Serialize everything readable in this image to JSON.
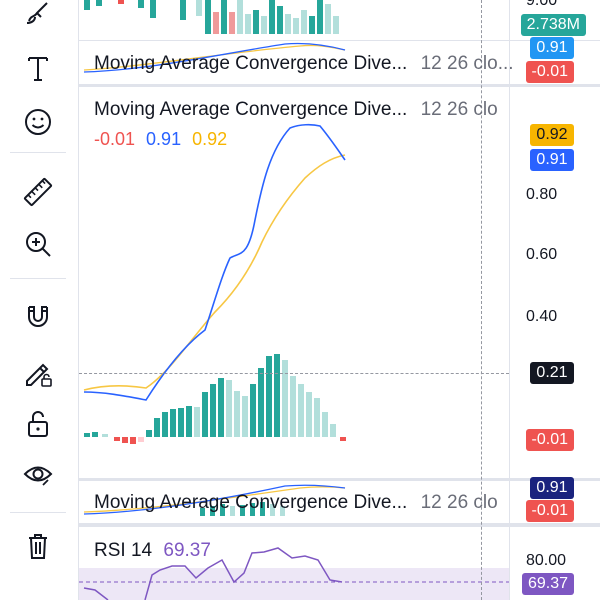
{
  "toolbar": {
    "tools": [
      {
        "name": "brush-icon"
      },
      {
        "name": "text-icon"
      },
      {
        "name": "emoji-icon"
      },
      {
        "name": "ruler-icon"
      },
      {
        "name": "zoom-in-icon"
      },
      {
        "name": "magnet-icon"
      },
      {
        "name": "lock-drawing-icon"
      },
      {
        "name": "unlock-icon"
      },
      {
        "name": "eye-icon"
      },
      {
        "name": "trash-icon"
      }
    ]
  },
  "top_pane": {
    "volume_badge": "2.738M",
    "cut_tick": "9.00",
    "colors": {
      "up": "#26a69a",
      "down": "#ef9a9a"
    }
  },
  "macd_collapsed_top": {
    "legend": "Moving Average Convergence Dive...",
    "params": "12 26 clo...",
    "badge_macd": "0.91",
    "badge_hist": "-0.01"
  },
  "macd_main": {
    "legend": "Moving Average Convergence Dive...",
    "params": "12 26 clo",
    "values": {
      "hist": "-0.01",
      "macd": "0.91",
      "signal": "0.92"
    },
    "badges": {
      "signal": "0.92",
      "macd": "0.91",
      "crosshair": "0.21",
      "hist": "-0.01"
    },
    "axis_ticks": [
      "0.80",
      "0.60",
      "0.40"
    ],
    "colors": {
      "macd": "#2962ff",
      "signal": "#f7c744",
      "hist_up_strong": "#26a69a",
      "hist_up_weak": "#b2dfdb",
      "hist_down_strong": "#ef5350",
      "hist_down_weak": "#ffcdd2"
    }
  },
  "macd_collapsed_bottom": {
    "legend": "Moving Average Convergence Dive...",
    "params": "12 26 clo",
    "badge_macd": "0.91",
    "badge_hist": "-0.01"
  },
  "rsi": {
    "legend": "RSI 14",
    "value": "69.37",
    "axis_tick": "80.00",
    "badge": "69.37",
    "color": "#7e57c2"
  }
}
